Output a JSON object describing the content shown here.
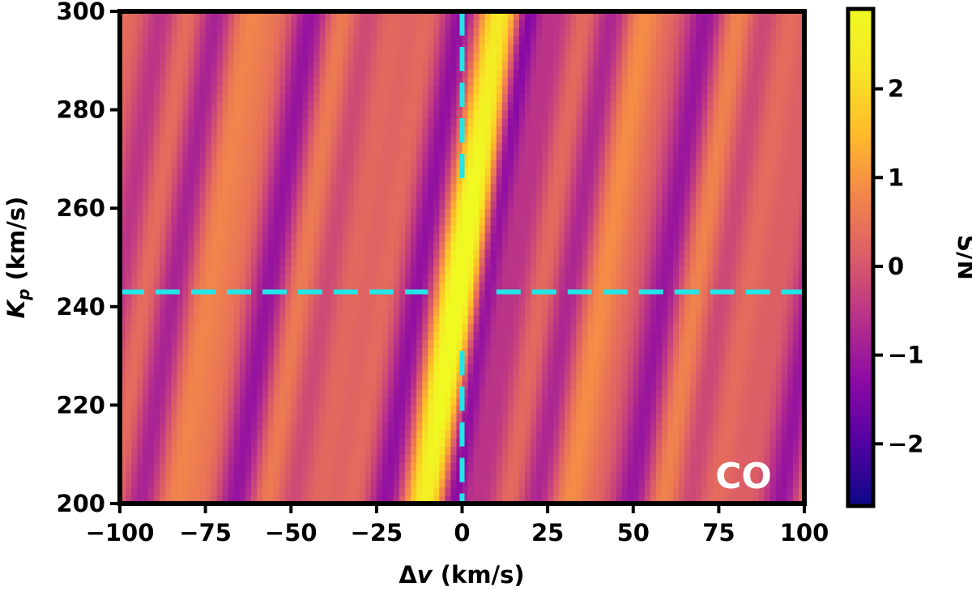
{
  "chart_data": {
    "type": "heatmap",
    "title": "",
    "xlabel": "Δv (km/s)",
    "ylabel": "K_p (km/s)",
    "ylabel_main": "K",
    "ylabel_sub": "p",
    "ylabel_rest": " (km/s)",
    "xlabel_main": "Δ",
    "xlabel_var": "v",
    "xlabel_rest": " (km/s)",
    "xlim": [
      -100,
      100
    ],
    "ylim": [
      200,
      300
    ],
    "xticks": [
      -100,
      -75,
      -50,
      -25,
      0,
      25,
      50,
      75,
      100
    ],
    "xtick_labels": [
      "−100",
      "−75",
      "−50",
      "−25",
      "0",
      "25",
      "50",
      "75",
      "100"
    ],
    "yticks": [
      200,
      220,
      240,
      260,
      280,
      300
    ],
    "ytick_labels": [
      "200",
      "220",
      "240",
      "260",
      "280",
      "300"
    ],
    "colorbar": {
      "label": "S/N",
      "range": [
        -2.7,
        2.9
      ],
      "ticks": [
        -2,
        -1,
        0,
        1,
        2
      ],
      "tick_labels": [
        "−2",
        "−1",
        "0",
        "1",
        "2"
      ],
      "colormap": "plasma"
    },
    "annotation": "CO",
    "markers": {
      "vertical_line_x": 0,
      "horizontal_line_y": 243,
      "color": "#22e5e8"
    },
    "peak": {
      "x": 0,
      "y": 243,
      "value": 2.6
    },
    "grid": {
      "nx": 120,
      "ny": 60
    }
  }
}
